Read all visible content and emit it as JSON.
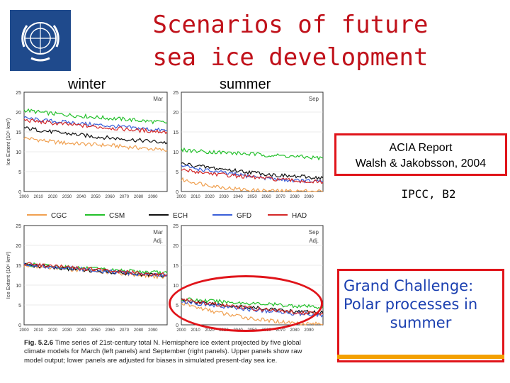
{
  "title_line1": "Scenarios of future",
  "title_line2": "sea ice development",
  "label_winter": "winter",
  "label_summer": "summer",
  "acia_line1": "ACIA Report",
  "acia_line2": "Walsh & Jakobsson, 2004",
  "ipcc_label": "IPCC, B2",
  "gc_line1": "Grand Challenge:",
  "gc_line2": "Polar processes in",
  "gc_line3": "summer",
  "caption_fig": "Fig. 5.2.6",
  "caption_text": "Time series of 21st-century total N. Hemisphere ice extent projected by five global climate models for March (left panels) and September (right panels). Upper panels show raw model output; lower panels are adjusted for biases in simulated present-day sea ice.",
  "colors": {
    "title": "#c0111a",
    "highlight": "#e0141a",
    "logo": "#1f4a8c",
    "gc_text": "#1a3fb0",
    "gc_bar": "#f3a000"
  },
  "logo_icon": "wmo-emblem-icon",
  "chart_data": [
    {
      "type": "line",
      "panel": "Mar",
      "adj": "",
      "x": [
        2000,
        2010,
        2020,
        2030,
        2040,
        2050,
        2060,
        2070,
        2080,
        2090,
        2100
      ],
      "ylim": [
        0,
        25
      ],
      "yticks": [
        0,
        5,
        10,
        15,
        20,
        25
      ],
      "ylabel": "Ice Extent (10⁶ km²)",
      "xticks": [
        "2000",
        "2010",
        "2020",
        "2030",
        "2040",
        "2050",
        "2060",
        "2070",
        "2080",
        "2090"
      ],
      "series": [
        {
          "name": "CGC",
          "color": "#f0a050",
          "values": [
            13.5,
            13.0,
            12.5,
            12.2,
            12.0,
            11.8,
            11.6,
            11.3,
            11.0,
            10.7,
            10.3
          ]
        },
        {
          "name": "CSM",
          "color": "#22c02a",
          "values": [
            20.5,
            20.0,
            19.6,
            19.3,
            19.0,
            18.7,
            18.4,
            18.2,
            17.9,
            17.6,
            17.3
          ]
        },
        {
          "name": "ECH",
          "color": "#111111",
          "values": [
            16.0,
            15.5,
            15.0,
            14.6,
            14.2,
            13.8,
            13.5,
            13.2,
            12.9,
            12.6,
            12.3
          ]
        },
        {
          "name": "GFD",
          "color": "#3a5fd8",
          "values": [
            18.5,
            18.0,
            17.7,
            17.4,
            17.1,
            16.8,
            16.5,
            16.2,
            15.9,
            15.6,
            15.3
          ]
        },
        {
          "name": "HAD",
          "color": "#d42828",
          "values": [
            18.0,
            17.6,
            17.2,
            16.9,
            16.6,
            16.3,
            16.0,
            15.7,
            15.4,
            15.2,
            15.0
          ]
        }
      ]
    },
    {
      "type": "line",
      "panel": "Sep",
      "adj": "",
      "x": [
        2000,
        2010,
        2020,
        2030,
        2040,
        2050,
        2060,
        2070,
        2080,
        2090,
        2100
      ],
      "ylim": [
        0,
        25
      ],
      "yticks": [
        0,
        5,
        10,
        15,
        20,
        25
      ],
      "ylabel": "",
      "xticks": [
        "2000",
        "2010",
        "2020",
        "2030",
        "2040",
        "2050",
        "2060",
        "2070",
        "2080",
        "2090"
      ],
      "series": [
        {
          "name": "CGC",
          "color": "#f0a050",
          "values": [
            3.0,
            2.2,
            1.6,
            1.0,
            0.6,
            0.3,
            0.2,
            0.1,
            0.1,
            0.1,
            0.1
          ]
        },
        {
          "name": "CSM",
          "color": "#22c02a",
          "values": [
            10.5,
            10.2,
            10.0,
            9.8,
            9.6,
            9.4,
            9.2,
            9.0,
            8.8,
            8.6,
            8.4
          ]
        },
        {
          "name": "ECH",
          "color": "#111111",
          "values": [
            7.0,
            6.5,
            6.0,
            5.6,
            5.2,
            4.8,
            4.4,
            4.0,
            3.8,
            3.6,
            3.4
          ]
        },
        {
          "name": "GFD",
          "color": "#3a5fd8",
          "values": [
            6.5,
            5.8,
            5.2,
            4.7,
            4.2,
            3.8,
            3.4,
            3.0,
            2.8,
            2.6,
            2.4
          ]
        },
        {
          "name": "HAD",
          "color": "#d42828",
          "values": [
            5.5,
            5.0,
            4.6,
            4.2,
            3.9,
            3.6,
            3.3,
            3.0,
            2.7,
            2.5,
            2.3
          ]
        }
      ]
    },
    {
      "type": "line",
      "panel": "Mar",
      "adj": "Adj.",
      "x": [
        2000,
        2010,
        2020,
        2030,
        2040,
        2050,
        2060,
        2070,
        2080,
        2090,
        2100
      ],
      "ylim": [
        0,
        25
      ],
      "yticks": [
        0,
        5,
        10,
        15,
        20,
        25
      ],
      "ylabel": "Ice Extent (10⁶ km²)",
      "xticks": [
        "2000",
        "2010",
        "2020",
        "2030",
        "2040",
        "2050",
        "2060",
        "2070",
        "2080",
        "2090"
      ],
      "series": [
        {
          "name": "CGC",
          "color": "#f0a050",
          "values": [
            15.0,
            14.7,
            14.4,
            14.1,
            13.8,
            13.5,
            13.2,
            12.9,
            12.6,
            12.3,
            12.0
          ]
        },
        {
          "name": "CSM",
          "color": "#22c02a",
          "values": [
            15.3,
            15.0,
            14.8,
            14.5,
            14.3,
            14.0,
            13.8,
            13.6,
            13.4,
            13.2,
            13.0
          ]
        },
        {
          "name": "ECH",
          "color": "#111111",
          "values": [
            15.1,
            14.8,
            14.5,
            14.2,
            13.9,
            13.6,
            13.3,
            13.0,
            12.7,
            12.5,
            12.3
          ]
        },
        {
          "name": "GFD",
          "color": "#3a5fd8",
          "values": [
            15.2,
            14.9,
            14.6,
            14.3,
            14.0,
            13.7,
            13.4,
            13.1,
            12.8,
            12.6,
            12.4
          ]
        },
        {
          "name": "HAD",
          "color": "#d42828",
          "values": [
            15.4,
            15.1,
            14.8,
            14.5,
            14.2,
            13.9,
            13.6,
            13.3,
            13.0,
            12.8,
            12.6
          ]
        }
      ]
    },
    {
      "type": "line",
      "panel": "Sep",
      "adj": "Adj.",
      "x": [
        2000,
        2010,
        2020,
        2030,
        2040,
        2050,
        2060,
        2070,
        2080,
        2090,
        2100
      ],
      "ylim": [
        0,
        25
      ],
      "yticks": [
        0,
        5,
        10,
        15,
        20,
        25
      ],
      "ylabel": "",
      "xticks": [
        "2000",
        "2010",
        "2020",
        "2030",
        "2040",
        "2050",
        "2060",
        "2070",
        "2080",
        "2090"
      ],
      "series": [
        {
          "name": "CGC",
          "color": "#f0a050",
          "values": [
            5.5,
            4.5,
            3.6,
            2.8,
            2.2,
            1.6,
            1.1,
            0.8,
            0.5,
            0.3,
            0.2
          ]
        },
        {
          "name": "CSM",
          "color": "#22c02a",
          "values": [
            6.5,
            6.2,
            6.0,
            5.8,
            5.6,
            5.4,
            5.2,
            5.0,
            4.8,
            4.6,
            4.4
          ]
        },
        {
          "name": "ECH",
          "color": "#111111",
          "values": [
            6.2,
            5.8,
            5.4,
            5.0,
            4.6,
            4.3,
            4.0,
            3.7,
            3.4,
            3.2,
            3.0
          ]
        },
        {
          "name": "GFD",
          "color": "#3a5fd8",
          "values": [
            6.0,
            5.5,
            5.0,
            4.6,
            4.2,
            3.8,
            3.5,
            3.2,
            2.9,
            2.7,
            2.5
          ]
        },
        {
          "name": "HAD",
          "color": "#d42828",
          "values": [
            6.3,
            5.8,
            5.3,
            4.9,
            4.5,
            4.1,
            3.8,
            3.5,
            3.2,
            3.0,
            2.8
          ]
        }
      ]
    }
  ]
}
